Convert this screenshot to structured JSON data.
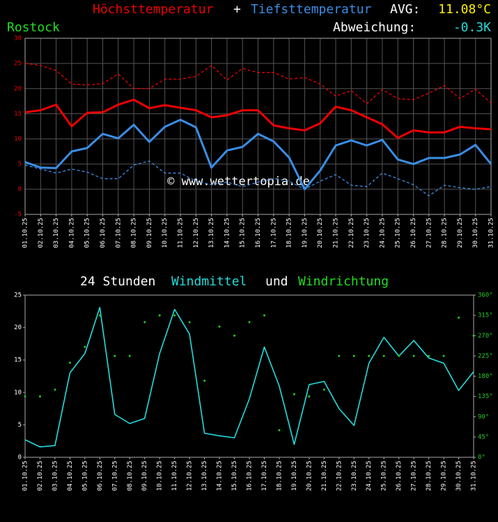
{
  "chart_data": [
    {
      "type": "line",
      "title_plus": "+",
      "avg_label": "AVG:",
      "avg": "11.08°C",
      "location": "Rostock",
      "deviation_label": "Abweichung:",
      "deviation": "-0.3K",
      "watermark": "© www.wettertopia.de",
      "categories": [
        "01.10.25",
        "02.10.25",
        "03.10.25",
        "04.10.25",
        "05.10.25",
        "06.10.25",
        "07.10.25",
        "08.10.25",
        "09.10.25",
        "10.10.25",
        "11.10.25",
        "12.10.25",
        "13.10.25",
        "14.10.25",
        "15.10.25",
        "16.10.25",
        "17.10.25",
        "18.10.25",
        "19.10.25",
        "20.10.25",
        "21.10.25",
        "22.10.25",
        "23.10.25",
        "24.10.25",
        "25.10.25",
        "26.10.25",
        "27.10.25",
        "28.10.25",
        "29.10.25",
        "30.10.25",
        "31.10.25"
      ],
      "ylim": [
        -5,
        30
      ],
      "yticks": [
        -5,
        0,
        5,
        10,
        15,
        20,
        25,
        30
      ],
      "grid": true,
      "series": [
        {
          "name": "Höchsttemperatur",
          "color": "#ee0000",
          "style": "solid",
          "values": [
            15.3,
            15.7,
            16.8,
            12.5,
            15.2,
            15.3,
            16.8,
            17.8,
            16.1,
            16.7,
            16.2,
            15.7,
            14.3,
            14.7,
            15.7,
            15.7,
            12.7,
            12.1,
            11.7,
            13.1,
            16.4,
            15.7,
            14.3,
            12.9,
            10.2,
            11.7,
            11.3,
            11.3,
            12.4,
            12.1,
            11.9
          ]
        },
        {
          "name": "Tiefsttemperatur",
          "color": "#3a8ee6",
          "style": "solid",
          "values": [
            5.4,
            4.3,
            4.2,
            7.5,
            8.2,
            11.0,
            10.1,
            12.8,
            9.4,
            12.4,
            13.8,
            12.3,
            4.3,
            7.7,
            8.4,
            11.0,
            9.5,
            6.3,
            0.0,
            3.7,
            8.7,
            9.7,
            8.7,
            9.8,
            5.9,
            5.0,
            6.2,
            6.2,
            6.9,
            8.8,
            5.0
          ]
        },
        {
          "color": "#ee0000",
          "style": "dashed",
          "values": [
            25.0,
            24.6,
            23.6,
            20.9,
            20.7,
            21.0,
            22.9,
            20.0,
            20.0,
            21.9,
            21.9,
            22.4,
            24.6,
            21.7,
            24.0,
            23.2,
            23.2,
            21.9,
            22.2,
            20.9,
            18.5,
            19.6,
            17.0,
            19.8,
            18.0,
            17.8,
            19.1,
            20.6,
            18.0,
            19.9,
            17.1
          ]
        },
        {
          "color": "#3a8ee6",
          "style": "dashed",
          "values": [
            4.8,
            4.0,
            3.2,
            4.0,
            3.4,
            2.1,
            2.1,
            4.8,
            5.6,
            3.2,
            3.2,
            1.6,
            0.9,
            1.4,
            0.5,
            1.4,
            2.1,
            1.6,
            0.0,
            1.6,
            2.9,
            0.8,
            0.5,
            3.2,
            2.1,
            0.9,
            -1.3,
            0.8,
            0.3,
            0.0,
            0.5
          ]
        }
      ]
    },
    {
      "type": "line",
      "title_prefix": "24 Stunden",
      "title_joiner": "und",
      "categories": [
        "01.10.25",
        "02.10.25",
        "03.10.25",
        "04.10.25",
        "05.10.25",
        "06.10.25",
        "07.10.25",
        "08.10.25",
        "09.10.25",
        "10.10.25",
        "11.10.25",
        "12.10.25",
        "13.10.25",
        "14.10.25",
        "15.10.25",
        "16.10.25",
        "17.10.25",
        "18.10.25",
        "19.10.25",
        "20.10.25",
        "21.10.25",
        "22.10.25",
        "23.10.25",
        "24.10.25",
        "25.10.25",
        "26.10.25",
        "27.10.25",
        "28.10.25",
        "29.10.25",
        "30.10.25",
        "31.10.25"
      ],
      "ylim": [
        0,
        25
      ],
      "yticks": [
        0,
        5,
        10,
        15,
        20,
        25
      ],
      "y2lim": [
        0,
        360
      ],
      "y2ticks": [
        {
          "value": 0,
          "label": "0°"
        },
        {
          "value": 45,
          "label": "45°"
        },
        {
          "value": 90,
          "label": "90°"
        },
        {
          "value": 135,
          "label": "135°"
        },
        {
          "value": 180,
          "label": "180°"
        },
        {
          "value": 225,
          "label": "225°"
        },
        {
          "value": 270,
          "label": "270°"
        },
        {
          "value": 315,
          "label": "315°"
        },
        {
          "value": 360,
          "label": "360°"
        }
      ],
      "grid": false,
      "series": [
        {
          "name": "Windmittel",
          "color": "#22dddd",
          "style": "solid",
          "values": [
            2.7,
            1.6,
            1.8,
            13.0,
            16.0,
            23.1,
            6.6,
            5.2,
            6.0,
            16.0,
            22.8,
            19.0,
            3.7,
            3.3,
            3.0,
            9.0,
            17.0,
            11.0,
            2.0,
            11.2,
            11.7,
            7.5,
            4.9,
            14.5,
            18.5,
            15.6,
            18.0,
            15.3,
            14.5,
            10.3,
            13.2
          ]
        },
        {
          "name": "Windrichtung",
          "color": "#22cc22",
          "style": "dots",
          "axis": "y2",
          "values": [
            135,
            135,
            150,
            210,
            245,
            315,
            225,
            225,
            300,
            315,
            315,
            300,
            170,
            290,
            270,
            300,
            315,
            60,
            140,
            135,
            150,
            225,
            225,
            225,
            225,
            225,
            225,
            225,
            225,
            310,
            270
          ]
        }
      ]
    }
  ]
}
